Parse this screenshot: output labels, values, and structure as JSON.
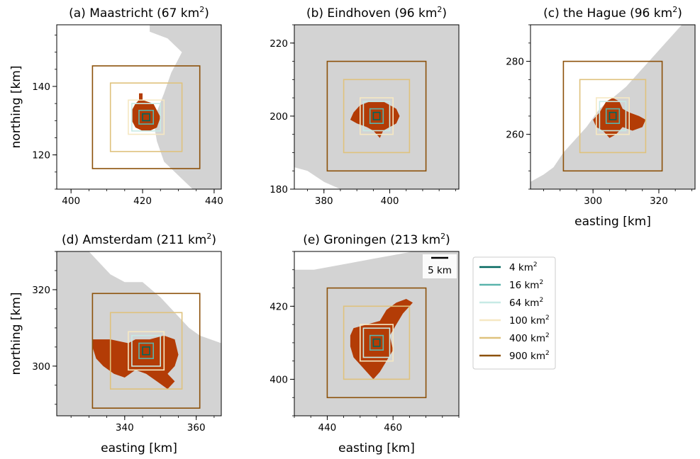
{
  "colors": {
    "land": "#d3d3d3",
    "urban": "#b33c06",
    "sq4": "#01665e",
    "sq16": "#5ab4ac",
    "sq64": "#c7eae5",
    "sq100": "#f6e8c3",
    "sq400": "#dfc27d",
    "sq900": "#8c510a"
  },
  "legend": {
    "entries": [
      {
        "label": "4 km",
        "sup": "2",
        "color_key": "sq4"
      },
      {
        "label": "16 km",
        "sup": "2",
        "color_key": "sq16"
      },
      {
        "label": "64 km",
        "sup": "2",
        "color_key": "sq64"
      },
      {
        "label": "100 km",
        "sup": "2",
        "color_key": "sq100"
      },
      {
        "label": "400 km",
        "sup": "2",
        "color_key": "sq400"
      },
      {
        "label": "900 km",
        "sup": "2",
        "color_key": "sq900"
      }
    ]
  },
  "scalebar": {
    "label": "5 km"
  },
  "chart_data": [
    {
      "type": "map",
      "title_main": "(a) Maastricht (67 km",
      "title_sup": "2",
      "title_end": ")",
      "center": [
        421,
        131
      ],
      "xlim": [
        396,
        442
      ],
      "ylim": [
        110,
        158
      ],
      "xticks": [
        400,
        420,
        440
      ],
      "yticks": [
        120,
        140
      ],
      "xlabel": "",
      "ylabel": "northing [km]",
      "squares_km": [
        2,
        4,
        8,
        10,
        20,
        30
      ],
      "land": [
        [
          422,
          158
        ],
        [
          442,
          158
        ],
        [
          442,
          110
        ],
        [
          434,
          110
        ],
        [
          431,
          113
        ],
        [
          426,
          118
        ],
        [
          424,
          124
        ],
        [
          423,
          130
        ],
        [
          426,
          138
        ],
        [
          428,
          144
        ],
        [
          431,
          150
        ],
        [
          427,
          154
        ],
        [
          422,
          156
        ]
      ],
      "urban": [
        [
          419,
          138
        ],
        [
          420,
          138
        ],
        [
          420,
          136
        ],
        [
          423,
          135
        ],
        [
          424,
          133
        ],
        [
          425,
          131
        ],
        [
          424,
          128
        ],
        [
          422,
          127
        ],
        [
          420,
          127
        ],
        [
          418,
          128
        ],
        [
          417,
          130
        ],
        [
          417,
          133
        ],
        [
          418,
          135
        ],
        [
          419,
          136
        ]
      ]
    },
    {
      "type": "map",
      "title_main": "(b) Eindhoven (96 km",
      "title_sup": "2",
      "title_end": ")",
      "center": [
        396,
        200
      ],
      "xlim": [
        371,
        421
      ],
      "ylim": [
        180,
        225
      ],
      "xticks": [
        380,
        400
      ],
      "yticks": [
        180,
        200,
        220
      ],
      "xlabel": "",
      "ylabel": "",
      "squares_km": [
        2,
        4,
        8,
        10,
        20,
        30
      ],
      "land": [
        [
          371,
          225
        ],
        [
          421,
          225
        ],
        [
          421,
          180
        ],
        [
          385,
          180
        ],
        [
          380,
          182
        ],
        [
          375,
          185
        ],
        [
          371,
          186
        ]
      ],
      "urban": [
        [
          389,
          201
        ],
        [
          391,
          203
        ],
        [
          394,
          204
        ],
        [
          398,
          204
        ],
        [
          400,
          203
        ],
        [
          402,
          202
        ],
        [
          403,
          200
        ],
        [
          402,
          198
        ],
        [
          400,
          197
        ],
        [
          398,
          196
        ],
        [
          397,
          194
        ],
        [
          395,
          196
        ],
        [
          393,
          197
        ],
        [
          390,
          198
        ],
        [
          388,
          199
        ]
      ]
    },
    {
      "type": "map",
      "title_main": "(c) the Hague (96 km",
      "title_sup": "2",
      "title_end": ")",
      "center": [
        306,
        265
      ],
      "xlim": [
        281,
        331
      ],
      "ylim": [
        245,
        290
      ],
      "xticks": [
        300,
        320
      ],
      "yticks": [
        260,
        280
      ],
      "xlabel": "easting [km]",
      "ylabel": "",
      "squares_km": [
        2,
        4,
        8,
        10,
        20,
        30
      ],
      "land": [
        [
          331,
          290
        ],
        [
          327,
          290
        ],
        [
          322,
          285
        ],
        [
          318,
          281
        ],
        [
          314,
          277
        ],
        [
          310,
          273
        ],
        [
          306,
          270
        ],
        [
          302,
          267
        ],
        [
          298,
          262
        ],
        [
          294,
          258
        ],
        [
          291,
          255
        ],
        [
          288,
          251
        ],
        [
          285,
          249
        ],
        [
          281,
          247
        ],
        [
          281,
          245
        ],
        [
          331,
          245
        ]
      ],
      "urban": [
        [
          304,
          269
        ],
        [
          306,
          270
        ],
        [
          308,
          269
        ],
        [
          309,
          267
        ],
        [
          311,
          266
        ],
        [
          314,
          265
        ],
        [
          316,
          264
        ],
        [
          315,
          262
        ],
        [
          312,
          261
        ],
        [
          309,
          262
        ],
        [
          307,
          260
        ],
        [
          305,
          259
        ],
        [
          303,
          261
        ],
        [
          301,
          262
        ],
        [
          300,
          264
        ],
        [
          302,
          266
        ]
      ]
    },
    {
      "type": "map",
      "title_main": "(d) Amsterdam (211 km",
      "title_sup": "2",
      "title_end": ")",
      "center": [
        346,
        304
      ],
      "xlim": [
        321,
        367
      ],
      "ylim": [
        287,
        330
      ],
      "xticks": [
        340,
        360
      ],
      "yticks": [
        300,
        320
      ],
      "xlabel": "easting [km]",
      "ylabel": "northing [km]",
      "squares_km": [
        2,
        4,
        8,
        10,
        20,
        30
      ],
      "land": [
        [
          321,
          330
        ],
        [
          330,
          330
        ],
        [
          333,
          327
        ],
        [
          336,
          324
        ],
        [
          340,
          322
        ],
        [
          345,
          322
        ],
        [
          350,
          318
        ],
        [
          353,
          315
        ],
        [
          356,
          312
        ],
        [
          358,
          310
        ],
        [
          361,
          308
        ],
        [
          364,
          307
        ],
        [
          367,
          306
        ],
        [
          367,
          287
        ],
        [
          321,
          287
        ]
      ],
      "urban": [
        [
          331,
          307
        ],
        [
          336,
          307
        ],
        [
          341,
          306
        ],
        [
          343,
          307
        ],
        [
          347,
          307
        ],
        [
          351,
          308
        ],
        [
          354,
          307
        ],
        [
          355,
          303
        ],
        [
          354,
          300
        ],
        [
          352,
          298
        ],
        [
          354,
          296
        ],
        [
          352,
          294
        ],
        [
          349,
          296
        ],
        [
          346,
          298
        ],
        [
          343,
          299
        ],
        [
          340,
          297
        ],
        [
          337,
          298
        ],
        [
          334,
          300
        ],
        [
          332,
          302
        ],
        [
          331,
          305
        ]
      ]
    },
    {
      "type": "map",
      "title_main": "(e) Groningen (213 km",
      "title_sup": "2",
      "title_end": ")",
      "center": [
        455,
        410
      ],
      "xlim": [
        430,
        480
      ],
      "ylim": [
        390,
        435
      ],
      "xticks": [
        440,
        460
      ],
      "yticks": [
        400,
        420
      ],
      "xlabel": "easting [km]",
      "ylabel": "",
      "squares_km": [
        2,
        4,
        8,
        10,
        20,
        30
      ],
      "land": [
        [
          430,
          430
        ],
        [
          436,
          430
        ],
        [
          442,
          431
        ],
        [
          448,
          432
        ],
        [
          454,
          433
        ],
        [
          460,
          434
        ],
        [
          466,
          435
        ],
        [
          480,
          435
        ],
        [
          480,
          390
        ],
        [
          430,
          390
        ]
      ],
      "urban": [
        [
          448,
          414
        ],
        [
          452,
          415
        ],
        [
          456,
          416
        ],
        [
          458,
          419
        ],
        [
          461,
          421
        ],
        [
          464,
          422
        ],
        [
          466,
          421
        ],
        [
          463,
          418
        ],
        [
          461,
          415
        ],
        [
          459,
          412
        ],
        [
          460,
          408
        ],
        [
          458,
          405
        ],
        [
          456,
          402
        ],
        [
          454,
          400
        ],
        [
          452,
          402
        ],
        [
          450,
          404
        ],
        [
          448,
          406
        ],
        [
          447,
          409
        ],
        [
          447,
          412
        ]
      ]
    }
  ]
}
